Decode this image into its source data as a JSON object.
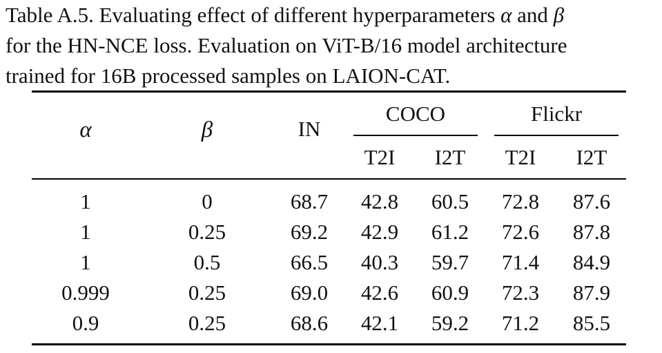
{
  "caption": {
    "line1_text": "Table A.5. Evaluating effect of different hyperparameters ",
    "line1_alpha": "α",
    "line1_and": " and ",
    "line1_beta": "β",
    "line2": "for the HN-NCE loss. Evaluation on ViT-B/16 model architecture",
    "line3": "trained for 16B processed samples on LAION-CAT."
  },
  "table": {
    "header": {
      "alpha": "α",
      "beta": "β",
      "in": "IN",
      "coco": "COCO",
      "flickr": "Flickr",
      "coco_t2i": "T2I",
      "coco_i2t": "I2T",
      "flickr_t2i": "T2I",
      "flickr_i2t": "I2T"
    },
    "rows": [
      {
        "alpha": "1",
        "beta": "0",
        "in": "68.7",
        "coco_t2i": "42.8",
        "coco_i2t": "60.5",
        "flickr_t2i": "72.8",
        "flickr_i2t": "87.6"
      },
      {
        "alpha": "1",
        "beta": "0.25",
        "in": "69.2",
        "coco_t2i": "42.9",
        "coco_i2t": "61.2",
        "flickr_t2i": "72.6",
        "flickr_i2t": "87.8"
      },
      {
        "alpha": "1",
        "beta": "0.5",
        "in": "66.5",
        "coco_t2i": "40.3",
        "coco_i2t": "59.7",
        "flickr_t2i": "71.4",
        "flickr_i2t": "84.9"
      },
      {
        "alpha": "0.999",
        "beta": "0.25",
        "in": "69.0",
        "coco_t2i": "42.6",
        "coco_i2t": "60.9",
        "flickr_t2i": "72.3",
        "flickr_i2t": "87.9"
      },
      {
        "alpha": "0.9",
        "beta": "0.25",
        "in": "68.6",
        "coco_t2i": "42.1",
        "coco_i2t": "59.2",
        "flickr_t2i": "71.2",
        "flickr_i2t": "85.5"
      }
    ]
  }
}
